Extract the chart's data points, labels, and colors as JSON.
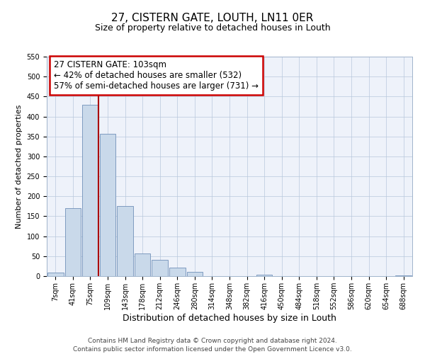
{
  "title": "27, CISTERN GATE, LOUTH, LN11 0ER",
  "subtitle": "Size of property relative to detached houses in Louth",
  "xlabel": "Distribution of detached houses by size in Louth",
  "ylabel": "Number of detached properties",
  "bar_color": "#c9d9ea",
  "bar_edge_color": "#7090b8",
  "background_color": "#eef2fa",
  "grid_color": "#b8c8dc",
  "categories": [
    "7sqm",
    "41sqm",
    "75sqm",
    "109sqm",
    "143sqm",
    "178sqm",
    "212sqm",
    "246sqm",
    "280sqm",
    "314sqm",
    "348sqm",
    "382sqm",
    "416sqm",
    "450sqm",
    "484sqm",
    "518sqm",
    "552sqm",
    "586sqm",
    "620sqm",
    "654sqm",
    "688sqm"
  ],
  "values": [
    8,
    170,
    430,
    357,
    175,
    57,
    40,
    21,
    11,
    0,
    0,
    0,
    3,
    0,
    0,
    0,
    0,
    0,
    0,
    0,
    2
  ],
  "ylim": [
    0,
    550
  ],
  "yticks": [
    0,
    50,
    100,
    150,
    200,
    250,
    300,
    350,
    400,
    450,
    500,
    550
  ],
  "vline_color": "#aa0000",
  "annotation_line1": "27 CISTERN GATE: 103sqm",
  "annotation_line2": "← 42% of detached houses are smaller (532)",
  "annotation_line3": "57% of semi-detached houses are larger (731) →",
  "annotation_box_color": "#ffffff",
  "annotation_box_edge_color": "#cc0000",
  "footer_line1": "Contains HM Land Registry data © Crown copyright and database right 2024.",
  "footer_line2": "Contains public sector information licensed under the Open Government Licence v3.0.",
  "title_fontsize": 11,
  "subtitle_fontsize": 9,
  "xlabel_fontsize": 9,
  "ylabel_fontsize": 8,
  "tick_fontsize": 7,
  "annotation_fontsize": 8.5,
  "footer_fontsize": 6.5
}
